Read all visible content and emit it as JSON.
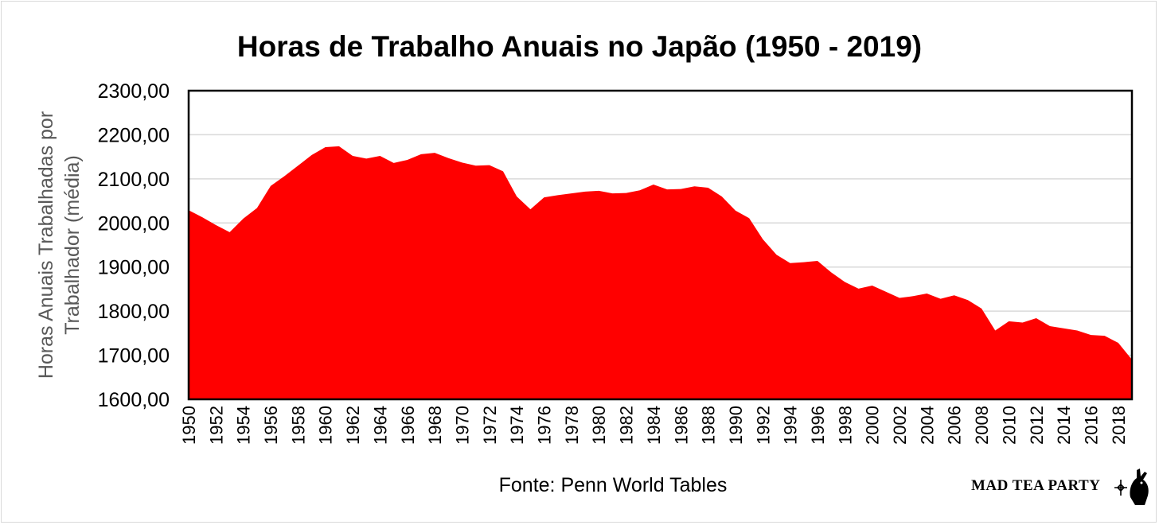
{
  "chart_data": {
    "type": "area",
    "title": "Horas de Trabalho Anuais no Japão (1950 - 2019)",
    "xlabel": "",
    "ylabel": "Horas Anuais Trabalhadas por Trabalhador (média)",
    "ylim": [
      1600,
      2300
    ],
    "yticks": [
      1600,
      1700,
      1800,
      1900,
      2000,
      2100,
      2200,
      2300
    ],
    "ytick_labels": [
      "1600,00",
      "1700,00",
      "1800,00",
      "1900,00",
      "2000,00",
      "2100,00",
      "2200,00",
      "2300,00"
    ],
    "xlim": [
      1950,
      2019
    ],
    "xtick_labels": [
      "1950",
      "1952",
      "1954",
      "1956",
      "1958",
      "1960",
      "1962",
      "1964",
      "1966",
      "1968",
      "1970",
      "1972",
      "1974",
      "1976",
      "1978",
      "1980",
      "1982",
      "1984",
      "1986",
      "1988",
      "1990",
      "1992",
      "1994",
      "1996",
      "1998",
      "2000",
      "2002",
      "2004",
      "2006",
      "2008",
      "2010",
      "2012",
      "2014",
      "2016",
      "2018"
    ],
    "grid": true,
    "color": "#ff0000",
    "x": [
      1950,
      1951,
      1952,
      1953,
      1954,
      1955,
      1956,
      1957,
      1958,
      1959,
      1960,
      1961,
      1962,
      1963,
      1964,
      1965,
      1966,
      1967,
      1968,
      1969,
      1970,
      1971,
      1972,
      1973,
      1974,
      1975,
      1976,
      1977,
      1978,
      1979,
      1980,
      1981,
      1982,
      1983,
      1984,
      1985,
      1986,
      1987,
      1988,
      1989,
      1990,
      1991,
      1992,
      1993,
      1994,
      1995,
      1996,
      1997,
      1998,
      1999,
      2000,
      2001,
      2002,
      2003,
      2004,
      2005,
      2006,
      2007,
      2008,
      2009,
      2010,
      2011,
      2012,
      2013,
      2014,
      2015,
      2016,
      2017,
      2018,
      2019
    ],
    "values": [
      2029,
      2013,
      1995,
      1979,
      2010,
      2034,
      2084,
      2106,
      2130,
      2154,
      2172,
      2174,
      2152,
      2146,
      2152,
      2136,
      2143,
      2156,
      2159,
      2147,
      2137,
      2130,
      2131,
      2117,
      2060,
      2031,
      2058,
      2063,
      2067,
      2071,
      2073,
      2067,
      2068,
      2074,
      2087,
      2076,
      2077,
      2083,
      2080,
      2060,
      2028,
      2011,
      1963,
      1928,
      1909,
      1911,
      1914,
      1888,
      1866,
      1851,
      1858,
      1844,
      1830,
      1834,
      1840,
      1828,
      1836,
      1825,
      1806,
      1756,
      1777,
      1774,
      1784,
      1766,
      1761,
      1756,
      1746,
      1744,
      1728,
      1690
    ]
  },
  "source_text": "Fonte: Penn World Tables",
  "logo_text": "MAD TEA PARTY"
}
